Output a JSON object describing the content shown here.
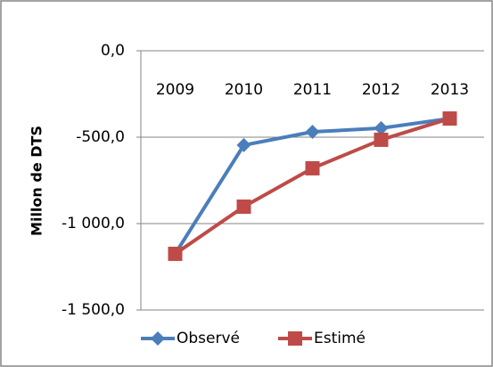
{
  "chart_data": {
    "type": "line",
    "y_label": "Millon de DTS",
    "categories": [
      "2009",
      "2010",
      "2011",
      "2012",
      "2013"
    ],
    "series": [
      {
        "name": "Observé",
        "color": "#4a7ebb",
        "marker": "diamond",
        "values": [
          -1175,
          -546,
          -469,
          -448,
          -392
        ]
      },
      {
        "name": "Estimé",
        "color": "#be4b48",
        "marker": "square",
        "values": [
          -1175,
          -902,
          -680,
          -515,
          -392
        ]
      }
    ],
    "ylim": [
      -1500,
      0
    ],
    "yticks": [
      {
        "value": 0,
        "label": "0,0"
      },
      {
        "value": -500,
        "label": "-500,0"
      },
      {
        "value": -1000,
        "label": "-1 000,0"
      },
      {
        "value": -1500,
        "label": "-1 500,0"
      }
    ],
    "grid": true,
    "legend": "bottom"
  }
}
